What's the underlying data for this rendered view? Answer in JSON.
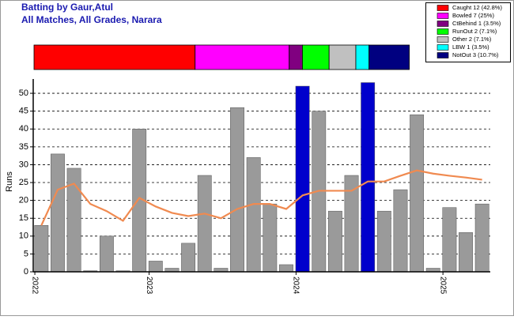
{
  "chart_data": {
    "type": "bar",
    "title": "Batting by Gaur,Atul",
    "subtitle": "All Matches, All Grades, Narara",
    "y_label": "Runs",
    "categories": [
      "2022",
      null,
      null,
      null,
      null,
      null,
      null,
      "2023",
      null,
      null,
      null,
      null,
      null,
      null,
      null,
      null,
      "2024",
      null,
      null,
      null,
      null,
      null,
      null,
      null,
      null,
      "2025",
      null,
      null
    ],
    "series": [
      {
        "type": "bar",
        "values": [
          13,
          33,
          29,
          0.3,
          10,
          0.3,
          40,
          3,
          1,
          8,
          27,
          1,
          46,
          32,
          19,
          2,
          52,
          45,
          17,
          27,
          53,
          17,
          23,
          44,
          1,
          18,
          11,
          19
        ],
        "colors": [
          "#9a9a9a",
          "#9a9a9a",
          "#9a9a9a",
          "#9a9a9a",
          "#9a9a9a",
          "#9a9a9a",
          "#9a9a9a",
          "#9a9a9a",
          "#9a9a9a",
          "#9a9a9a",
          "#9a9a9a",
          "#9a9a9a",
          "#9a9a9a",
          "#9a9a9a",
          "#9a9a9a",
          "#9a9a9a",
          "#0000cc",
          "#9a9a9a",
          "#9a9a9a",
          "#9a9a9a",
          "#0000cc",
          "#9a9a9a",
          "#9a9a9a",
          "#9a9a9a",
          "#9a9a9a",
          "#9a9a9a",
          "#9a9a9a",
          "#9a9a9a"
        ]
      },
      {
        "type": "line",
        "color": "#f08a50",
        "values": [
          13,
          23,
          24.7,
          19,
          17,
          14.3,
          20.7,
          18.3,
          16.5,
          15.6,
          16.3,
          15,
          17.6,
          19,
          19,
          17.6,
          21.4,
          22.7,
          22.7,
          22.7,
          25.3,
          25.3,
          26.9,
          28.4,
          27.5,
          26.9,
          26.4,
          25.8
        ]
      }
    ],
    "ylim": [
      0,
      54
    ],
    "yticks": [
      0,
      5,
      10,
      15,
      20,
      25,
      30,
      35,
      40,
      45,
      50
    ],
    "grid": true,
    "dismissals": [
      {
        "name": "Caught 12 (42.8%)",
        "value": 42.8,
        "color": "#ff0000"
      },
      {
        "name": "Bowled 7 (25%)",
        "value": 25,
        "color": "#ff00ff"
      },
      {
        "name": "CtBehind 1 (3.5%)",
        "value": 3.5,
        "color": "#800080"
      },
      {
        "name": "RunOut 2 (7.1%)",
        "value": 7.1,
        "color": "#00ff00"
      },
      {
        "name": "Other 2 (7.1%)",
        "value": 7.1,
        "color": "#c0c0c0"
      },
      {
        "name": "LBW 1 (3.5%)",
        "value": 3.5,
        "color": "#00ffff"
      },
      {
        "name": "NotOut 3 (10.7%)",
        "value": 10.7,
        "color": "#000080"
      }
    ]
  }
}
